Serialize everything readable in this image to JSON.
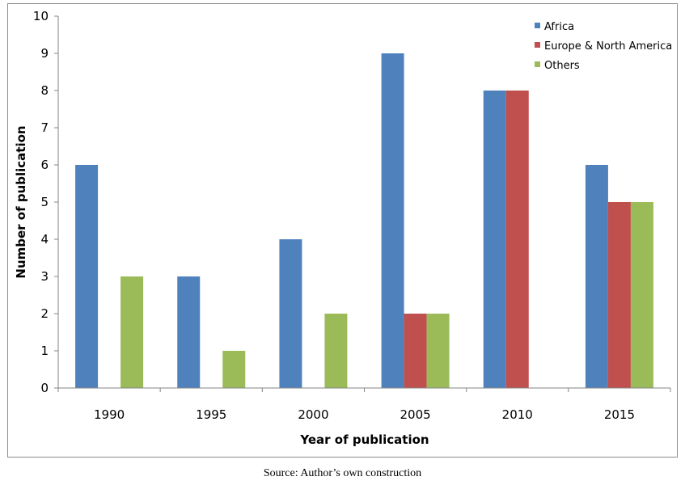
{
  "chart_data": {
    "type": "bar",
    "categories": [
      "1990",
      "1995",
      "2000",
      "2005",
      "2010",
      "2015"
    ],
    "series": [
      {
        "name": "Africa",
        "color": "#4f81bd",
        "values": [
          6,
          3,
          4,
          9,
          8,
          6
        ]
      },
      {
        "name": "Europe & North America",
        "color": "#c0504d",
        "values": [
          0,
          0,
          0,
          2,
          8,
          5
        ]
      },
      {
        "name": "Others",
        "color": "#9bbb59",
        "values": [
          3,
          1,
          2,
          2,
          0,
          5
        ]
      }
    ],
    "yticks": [
      "0",
      "1",
      "2",
      "3",
      "4",
      "5",
      "6",
      "7",
      "8",
      "9",
      "10"
    ],
    "ylim": [
      0,
      10
    ],
    "xlabel": "Year of publication",
    "ylabel": "Number of publication",
    "legend_position": "top-right",
    "grid": false
  },
  "source_note": "Source: Author’s own construction"
}
